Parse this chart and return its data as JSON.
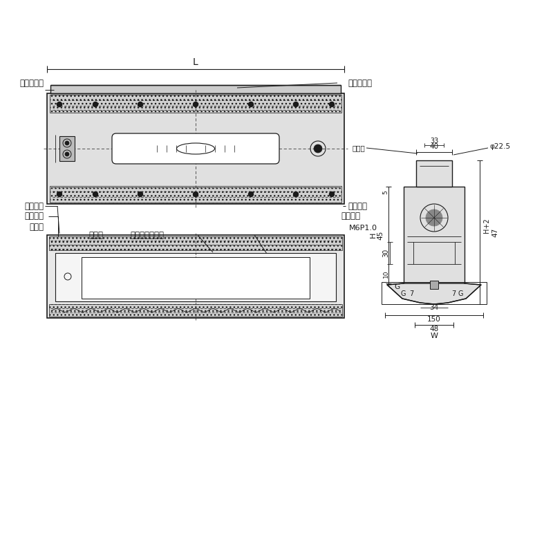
{
  "bg_color": "#ffffff",
  "line_color": "#1a1a1a",
  "annotations": {
    "fuku_ki": "副気ほう管",
    "shu_ki": "主気ほう管",
    "imo_neji": "イモネジ",
    "chosei_neji": "調整ネジ",
    "hogo_kan": "保護管",
    "cover": "カバー",
    "cover_neji": "カバー取付ネジ",
    "ita_bane": "板バネ",
    "m6p": "M6P1.0",
    "L": "L",
    "phi225": "φ22.5",
    "dim_40": "40",
    "dim_33": "33",
    "dim_45": "45",
    "dim_30": "30",
    "dim_10": "10",
    "dim_5": "5",
    "dim_H": "H",
    "dim_G": "G",
    "dim_7": "7",
    "dim_34": "34",
    "dim_150": "150",
    "dim_48": "48",
    "dim_W": "W",
    "dim_H2": "H+2",
    "dim_47": "47"
  }
}
